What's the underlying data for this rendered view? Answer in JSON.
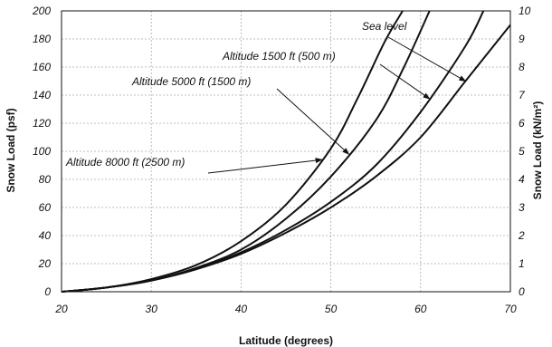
{
  "chart_data": {
    "type": "line",
    "xlabel": "Latitude (degrees)",
    "ylabel": "Snow Load (psf)",
    "y2label": "Snow Load (kN/m²)",
    "xlim": [
      20,
      70
    ],
    "ylim": [
      0,
      200
    ],
    "y2lim": [
      0,
      10
    ],
    "xticks": [
      "20",
      "30",
      "40",
      "50",
      "60",
      "70"
    ],
    "yticks": [
      "0",
      "20",
      "40",
      "60",
      "80",
      "100",
      "120",
      "140",
      "160",
      "180",
      "200"
    ],
    "y2ticks": [
      "0",
      "1",
      "2",
      "3",
      "4",
      "5",
      "6",
      "7",
      "8",
      "9",
      "10"
    ],
    "grid": true,
    "series": [
      {
        "name": "Sea level",
        "x": [
          20,
          25,
          30,
          35,
          40,
          45,
          50,
          55,
          60,
          65,
          70
        ],
        "y": [
          0,
          3,
          8,
          16,
          27,
          42,
          60,
          82,
          110,
          150,
          190
        ]
      },
      {
        "name": "Altitude 1500 ft (500 m)",
        "x": [
          20,
          25,
          30,
          35,
          40,
          45,
          50,
          55,
          60,
          65,
          67
        ],
        "y": [
          0,
          3,
          8,
          16,
          28,
          44,
          64,
          90,
          128,
          175,
          200
        ]
      },
      {
        "name": "Altitude 5000 ft (1500 m)",
        "x": [
          20,
          25,
          30,
          35,
          40,
          45,
          50,
          55,
          58,
          61
        ],
        "y": [
          0,
          3,
          8,
          17,
          30,
          52,
          82,
          122,
          158,
          200
        ]
      },
      {
        "name": "Altitude 8000 ft (2500 m)",
        "x": [
          20,
          25,
          30,
          35,
          40,
          45,
          50,
          53,
          56,
          58
        ],
        "y": [
          0,
          3,
          9,
          19,
          36,
          62,
          102,
          138,
          178,
          200
        ]
      }
    ],
    "annotations": [
      {
        "text": "Sea level"
      },
      {
        "text": "Altitude 1500 ft (500 m)"
      },
      {
        "text": "Altitude 5000 ft (1500 m)"
      },
      {
        "text": "Altitude 8000 ft (2500 m)"
      }
    ]
  }
}
